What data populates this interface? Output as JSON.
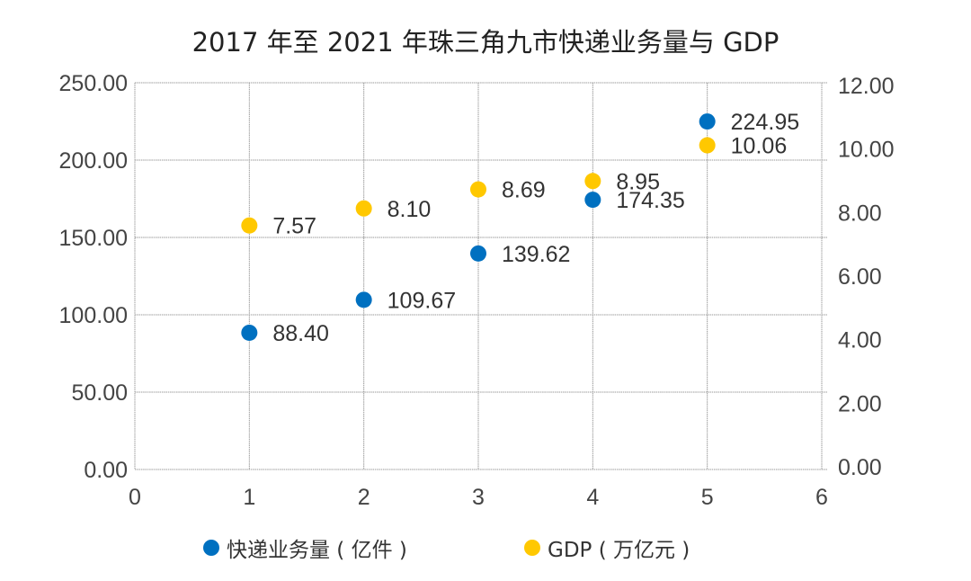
{
  "chart_data": {
    "type": "scatter",
    "title": "2017 年至 2021 年珠三角九市快递业务量与 GDP",
    "xlabel": "",
    "ylabel": "",
    "y2label": "",
    "x_ticks": [
      "0",
      "1",
      "2",
      "3",
      "4",
      "5",
      "6"
    ],
    "y_ticks": [
      "0.00",
      "50.00",
      "100.00",
      "150.00",
      "200.00",
      "250.00"
    ],
    "y2_ticks": [
      "0.00",
      "2.00",
      "4.00",
      "6.00",
      "8.00",
      "10.00",
      "12.00"
    ],
    "xlim": [
      0,
      6
    ],
    "ylim": [
      0,
      250
    ],
    "y2lim": [
      0,
      12
    ],
    "grid": true,
    "legend_position": "bottom",
    "series": [
      {
        "name": "快递业务量 ( 亿件 )",
        "axis": "left",
        "color": "#0070c0",
        "x": [
          1,
          2,
          3,
          4,
          5
        ],
        "values": [
          88.4,
          109.67,
          139.62,
          174.35,
          224.95
        ],
        "labels": [
          "88.40",
          "109.67",
          "139.62",
          "174.35",
          "224.95"
        ]
      },
      {
        "name": "GDP ( 万亿元 )",
        "axis": "right",
        "color": "#ffc800",
        "x": [
          1,
          2,
          3,
          4,
          5
        ],
        "values": [
          7.57,
          8.1,
          8.69,
          8.95,
          10.06
        ],
        "labels": [
          "7.57",
          "8.10",
          "8.69",
          "8.95",
          "10.06"
        ]
      }
    ]
  }
}
